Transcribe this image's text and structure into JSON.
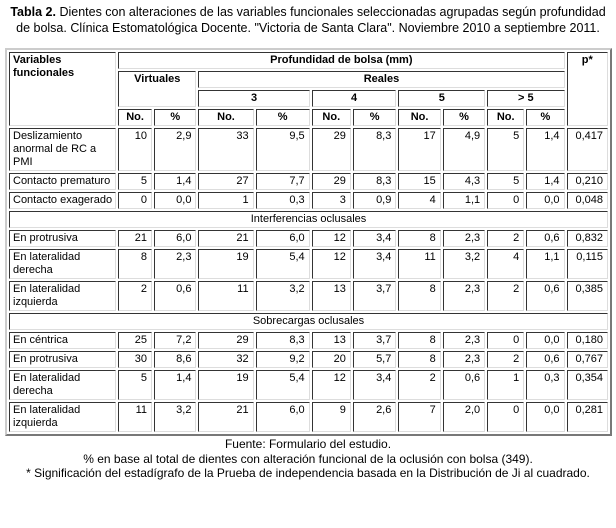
{
  "title": {
    "label": "Tabla 2.",
    "text": "Dientes con alteraciones de las variables funcionales seleccionadas agrupadas según profundidad de bolsa. Clínica Estomatológica Docente. \"Victoria de Santa Clara\". Noviembre 2010 a septiembre 2011."
  },
  "table": {
    "header": {
      "variables": "Variables funcionales",
      "profundidad": "Profundidad de bolsa (mm)",
      "p": "p*",
      "virtuales": "Virtuales",
      "reales": "Reales",
      "depths": [
        "3",
        "4",
        "5",
        "> 5"
      ],
      "no": "No.",
      "pct": "%"
    },
    "sections": [
      {
        "title": "",
        "rows": [
          {
            "label": "Deslizamiento anormal de RC a PMI",
            "values": [
              "10",
              "2,9",
              "33",
              "9,5",
              "29",
              "8,3",
              "17",
              "4,9",
              "5",
              "1,4",
              "0,417"
            ]
          },
          {
            "label": "Contacto prematuro",
            "values": [
              "5",
              "1,4",
              "27",
              "7,7",
              "29",
              "8,3",
              "15",
              "4,3",
              "5",
              "1,4",
              "0,210"
            ]
          },
          {
            "label": "Contacto exagerado",
            "values": [
              "0",
              "0,0",
              "1",
              "0,3",
              "3",
              "0,9",
              "4",
              "1,1",
              "0",
              "0,0",
              "0,048"
            ]
          }
        ]
      },
      {
        "title": "Interferencias oclusales",
        "rows": [
          {
            "label": "En protrusiva",
            "values": [
              "21",
              "6,0",
              "21",
              "6,0",
              "12",
              "3,4",
              "8",
              "2,3",
              "2",
              "0,6",
              "0,832"
            ]
          },
          {
            "label": "En lateralidad derecha",
            "values": [
              "8",
              "2,3",
              "19",
              "5,4",
              "12",
              "3,4",
              "11",
              "3,2",
              "4",
              "1,1",
              "0,115"
            ]
          },
          {
            "label": "En lateralidad izquierda",
            "values": [
              "2",
              "0,6",
              "11",
              "3,2",
              "13",
              "3,7",
              "8",
              "2,3",
              "2",
              "0,6",
              "0,385"
            ]
          }
        ]
      },
      {
        "title": "Sobrecargas oclusales",
        "rows": [
          {
            "label": "En céntrica",
            "values": [
              "25",
              "7,2",
              "29",
              "8,3",
              "13",
              "3,7",
              "8",
              "2,3",
              "0",
              "0,0",
              "0,180"
            ]
          },
          {
            "label": "En protrusiva",
            "values": [
              "30",
              "8,6",
              "32",
              "9,2",
              "20",
              "5,7",
              "8",
              "2,3",
              "2",
              "0,6",
              "0,767"
            ]
          },
          {
            "label": "En lateralidad derecha",
            "values": [
              "5",
              "1,4",
              "19",
              "5,4",
              "12",
              "3,4",
              "2",
              "0,6",
              "1",
              "0,3",
              "0,354"
            ]
          },
          {
            "label": "En lateralidad izquierda",
            "values": [
              "11",
              "3,2",
              "21",
              "6,0",
              "9",
              "2,6",
              "7",
              "2,0",
              "0",
              "0,0",
              "0,281"
            ]
          }
        ]
      }
    ]
  },
  "footer": {
    "source": "Fuente: Formulario del estudio.",
    "note1": "% en base al total de dientes con alteración funcional de la oclusión con bolsa (349).",
    "note2": "* Significación del estadígrafo de la Prueba de independencia basada en la Distribución de Ji al cuadrado."
  }
}
